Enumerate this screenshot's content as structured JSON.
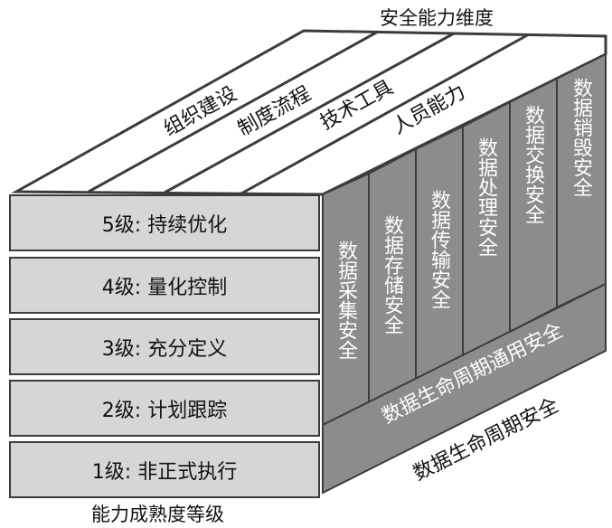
{
  "diagram": {
    "security_dimension_title": "安全能力维度",
    "dimensions": [
      "组织建设",
      "制度流程",
      "技术工具",
      "人员能力"
    ],
    "maturity_title": "能力成熟度等级",
    "levels": [
      "5级: 持续优化",
      "4级: 量化控制",
      "3级: 充分定义",
      "2级: 计划跟踪",
      "1级: 非正式执行"
    ],
    "lifecycle_stages": [
      "数据采集安全",
      "数据存储安全",
      "数据传输安全",
      "数据处理安全",
      "数据交换安全",
      "数据销毁安全"
    ],
    "general_security_label": "数据生命周期通用安全",
    "lifecycle_title": "数据生命周期安全"
  },
  "colors": {
    "front_face": "#d6d6d6",
    "side_face": "#8c8c8c",
    "top_face": "#ffffff",
    "border": "#3c3c3c",
    "side_text": "#ffffff"
  }
}
